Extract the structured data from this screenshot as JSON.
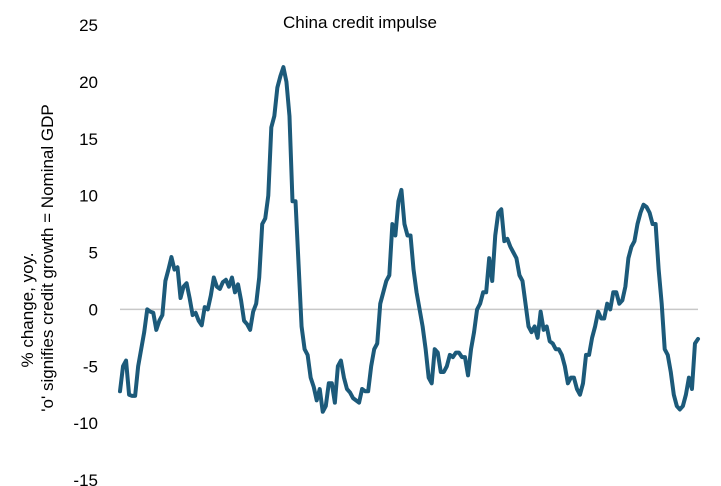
{
  "chart_data": {
    "type": "line",
    "title": "China credit impulse",
    "ylabel_lines": [
      "% change, yoy.",
      "'o' signifies credit growth = Nominal GDP"
    ],
    "xlabel": "",
    "ylim": [
      -15,
      25
    ],
    "yticks": [
      25,
      20,
      15,
      10,
      5,
      0,
      -5,
      -10,
      -15
    ],
    "grid": false,
    "zero_line": true,
    "colors": {
      "line": "#1c5a7a",
      "zero_line": "#c8c8c8"
    },
    "series": [
      {
        "values": [
          -7.2,
          -5.0,
          -4.5,
          -7.5,
          -7.6,
          -7.6,
          -5.0,
          -3.5,
          -2.0,
          0.0,
          -0.2,
          -0.3,
          -1.8,
          -1.0,
          -0.5,
          2.5,
          3.5,
          4.6,
          3.5,
          3.7,
          1.0,
          2.0,
          2.3,
          1.0,
          -0.5,
          -0.3,
          -1.0,
          -1.4,
          0.2,
          0.0,
          1.2,
          2.8,
          2.0,
          1.8,
          2.4,
          2.6,
          2.0,
          2.8,
          1.5,
          2.2,
          0.8,
          -1.0,
          -1.3,
          -1.8,
          -0.2,
          0.5,
          2.8,
          7.5,
          8.0,
          10.0,
          16.0,
          17.0,
          19.5,
          20.5,
          21.3,
          20.0,
          17.0,
          9.5,
          9.5,
          4.0,
          -1.5,
          -3.5,
          -4.0,
          -6.0,
          -6.8,
          -8.0,
          -7.0,
          -9.0,
          -8.5,
          -6.5,
          -6.5,
          -8.2,
          -5.0,
          -4.5,
          -6.0,
          -7.0,
          -7.3,
          -7.8,
          -8.0,
          -8.2,
          -7.0,
          -7.2,
          -7.2,
          -5.0,
          -3.5,
          -3.0,
          0.5,
          1.5,
          2.5,
          3.0,
          7.5,
          6.5,
          9.5,
          10.5,
          7.5,
          6.5,
          6.5,
          3.5,
          1.5,
          0.0,
          -1.5,
          -3.5,
          -6.0,
          -6.5,
          -3.5,
          -3.8,
          -5.5,
          -5.5,
          -5.0,
          -4.0,
          -4.2,
          -3.8,
          -3.8,
          -4.2,
          -4.2,
          -5.8,
          -3.5,
          -2.0,
          0.0,
          0.5,
          1.5,
          1.5,
          4.5,
          2.5,
          6.5,
          8.5,
          8.8,
          6.0,
          6.2,
          5.5,
          5.0,
          4.5,
          3.0,
          2.5,
          0.5,
          -1.5,
          -2.0,
          -1.5,
          -2.5,
          -0.2,
          -1.8,
          -1.5,
          -2.8,
          -3.0,
          -3.5,
          -3.5,
          -4.0,
          -5.0,
          -6.5,
          -6.0,
          -6.0,
          -7.0,
          -7.5,
          -6.5,
          -4.0,
          -4.0,
          -2.5,
          -1.5,
          -0.2,
          -0.8,
          -0.8,
          0.5,
          0.0,
          1.5,
          1.5,
          0.5,
          0.8,
          2.0,
          4.5,
          5.5,
          6.0,
          7.5,
          8.5,
          9.2,
          9.0,
          8.5,
          7.5,
          7.5,
          3.5,
          0.5,
          -3.5,
          -4.0,
          -5.5,
          -7.5,
          -8.5,
          -8.8,
          -8.5,
          -7.5,
          -6.0,
          -7.0,
          -3.0,
          -2.6
        ]
      }
    ]
  }
}
